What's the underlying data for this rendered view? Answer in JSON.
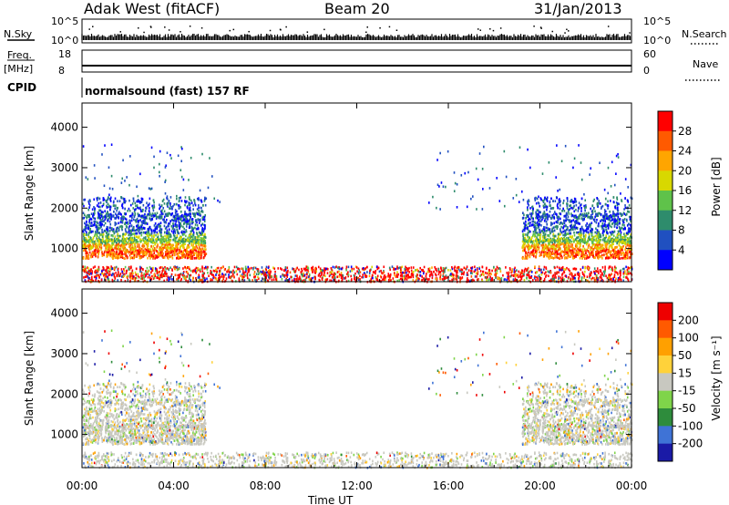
{
  "header": {
    "title": "Adak West (fitACF)",
    "beam": "Beam 20",
    "date": "31/Jan/2013"
  },
  "top_panels": {
    "nsky": {
      "label": "N.Sky",
      "left_ticks": [
        "10^5",
        "10^0"
      ],
      "right_ticks": [
        "10^5",
        "10^0"
      ],
      "right_label": "N.Search"
    },
    "freq": {
      "label_1": "Freq.",
      "label_2": "[MHz]",
      "left_ticks": [
        "18",
        "8"
      ],
      "right_ticks": [
        "60",
        "0"
      ],
      "right_label": "Nave"
    },
    "cpid": {
      "label": "CPID",
      "program": "normalsound (fast) 157 RF"
    }
  },
  "chart_data": [
    {
      "type": "heatmap",
      "name": "power",
      "ylabel": "Slant Range [km]",
      "ylim": [
        180,
        4600
      ],
      "yticks": [
        "1000",
        "2000",
        "3000",
        "4000"
      ],
      "colorbar_label": "Power [dB]",
      "colorbar_ticks": [
        "4",
        "8",
        "12",
        "16",
        "20",
        "24",
        "28"
      ],
      "colorbar_colors": [
        "#0000ff",
        "#2050c0",
        "#2e8c6c",
        "#5fc24a",
        "#d8d800",
        "#ffa500",
        "#ff5a00",
        "#ff0000"
      ]
    },
    {
      "type": "heatmap",
      "name": "velocity",
      "ylabel": "Slant Range [km]",
      "ylim": [
        180,
        4600
      ],
      "yticks": [
        "1000",
        "2000",
        "3000",
        "4000"
      ],
      "colorbar_label": "Velocity [m s⁻¹]",
      "colorbar_ticks": [
        "200",
        "100",
        "50",
        "15",
        "-15",
        "-50",
        "-100",
        "-200"
      ],
      "colorbar_colors": [
        "#1a1aa6",
        "#3f73d6",
        "#2e8c3c",
        "#7fd44a",
        "#c8c8c0",
        "#ffd23a",
        "#ffa000",
        "#ff5a00",
        "#ee0000"
      ]
    }
  ],
  "x_axis": {
    "label": "Time UT",
    "ticks": [
      "00:00",
      "04:00",
      "08:00",
      "12:00",
      "16:00",
      "20:00",
      "00:00"
    ]
  }
}
